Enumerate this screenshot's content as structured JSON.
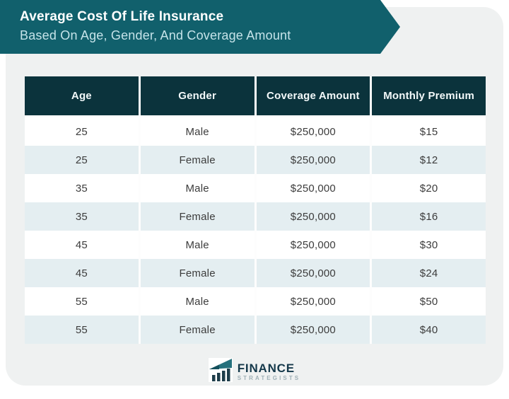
{
  "banner": {
    "title": "Average Cost Of Life Insurance",
    "subtitle": "Based On Age, Gender, And Coverage Amount"
  },
  "chart_data": {
    "type": "table",
    "title": "Average Cost Of Life Insurance Based On Age, Gender, And Coverage Amount",
    "columns": [
      "Age",
      "Gender",
      "Coverage Amount",
      "Monthly Premium"
    ],
    "rows": [
      [
        "25",
        "Male",
        "$250,000",
        "$15"
      ],
      [
        "25",
        "Female",
        "$250,000",
        "$12"
      ],
      [
        "35",
        "Male",
        "$250,000",
        "$20"
      ],
      [
        "35",
        "Female",
        "$250,000",
        "$16"
      ],
      [
        "45",
        "Male",
        "$250,000",
        "$30"
      ],
      [
        "45",
        "Female",
        "$250,000",
        "$24"
      ],
      [
        "55",
        "Male",
        "$250,000",
        "$50"
      ],
      [
        "55",
        "Female",
        "$250,000",
        "$40"
      ]
    ]
  },
  "logo": {
    "name": "FINANCE",
    "sub": "STRATEGISTS",
    "icon": "bar-chart-growth-icon"
  },
  "colors": {
    "banner_teal": "#11606c",
    "header_dark": "#0b333c",
    "row_tint": "#e4eef1",
    "card_gray": "#eff1f1",
    "subtitle_cyan": "#c5e3e9",
    "logo_navy": "#14384a",
    "logo_teal": "#26717d"
  }
}
